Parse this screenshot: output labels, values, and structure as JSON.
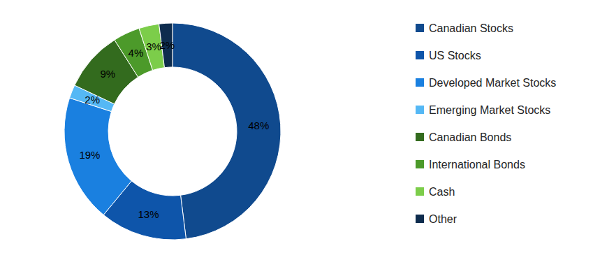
{
  "chart_data": {
    "type": "donut",
    "categories": [
      "Canadian Stocks",
      "US Stocks",
      "Developed Market Stocks",
      "Emerging Market Stocks",
      "Canadian Bonds",
      "International Bonds",
      "Cash",
      "Other"
    ],
    "values": [
      48,
      13,
      19,
      2,
      9,
      4,
      3,
      2
    ],
    "value_labels": [
      "48%",
      "13%",
      "19%",
      "2%",
      "9%",
      "4%",
      "3%",
      "2%"
    ],
    "colors": [
      "#104a8e",
      "#0e55aa",
      "#1a80e0",
      "#55b8f5",
      "#336b1e",
      "#4c9a2a",
      "#7ccd4a",
      "#0e2c4e"
    ],
    "data_labels": true,
    "legend": "right"
  }
}
